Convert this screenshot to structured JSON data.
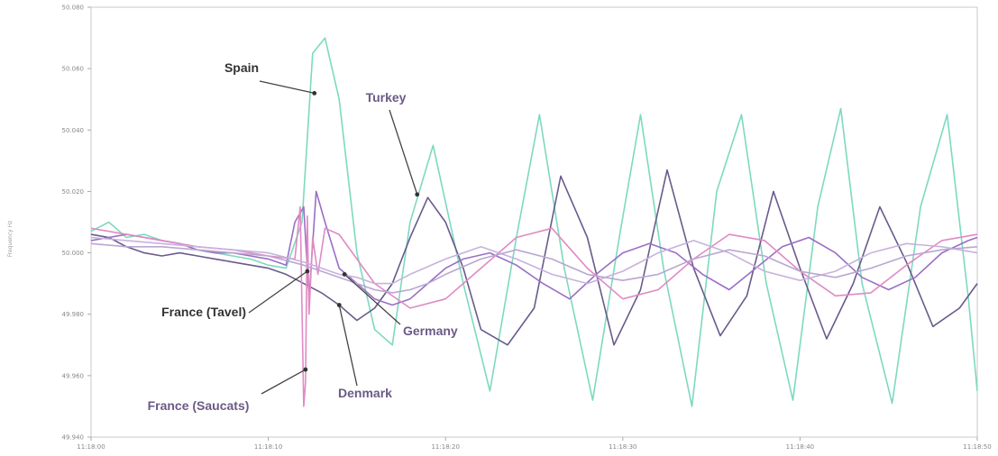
{
  "chart_data": {
    "type": "line",
    "title": "",
    "xlabel": "",
    "ylabel": "Frequency Hz",
    "xlim": [
      0,
      50
    ],
    "ylim": [
      49.94,
      50.08
    ],
    "x_ticks": [
      {
        "value": 0,
        "label": "11:18:00"
      },
      {
        "value": 10,
        "label": "11:18:10"
      },
      {
        "value": 20,
        "label": "11:18:20"
      },
      {
        "value": 30,
        "label": "11:18:30"
      },
      {
        "value": 40,
        "label": "11:18:40"
      },
      {
        "value": 50,
        "label": "11:18:50"
      }
    ],
    "y_ticks": [
      {
        "value": 49.94,
        "label": "49.940"
      },
      {
        "value": 49.96,
        "label": "49.960"
      },
      {
        "value": 49.98,
        "label": "49.980"
      },
      {
        "value": 50.0,
        "label": "50.000"
      },
      {
        "value": 50.02,
        "label": "50.020"
      },
      {
        "value": 50.04,
        "label": "50.040"
      },
      {
        "value": 50.06,
        "label": "50.060"
      },
      {
        "value": 50.08,
        "label": "50.080"
      }
    ],
    "grid": false,
    "legend": "none",
    "series": [
      {
        "name": "Spain",
        "color": "#7dd9c0",
        "x": [
          0,
          1,
          2,
          3,
          4,
          5,
          6,
          7,
          8,
          9,
          10,
          11,
          11.9,
          12.5,
          13.2,
          14,
          15,
          16,
          17,
          18,
          19.3,
          21,
          22.5,
          24,
          25.3,
          26.7,
          28.3,
          29.8,
          31,
          32.3,
          33.9,
          35.3,
          36.7,
          38.1,
          39.6,
          41,
          42.3,
          43.5,
          45.2,
          46.8,
          48.3,
          49.5,
          50
        ],
        "y": [
          50.007,
          50.01,
          50.005,
          50.006,
          50.004,
          50.003,
          50.001,
          50.0,
          49.999,
          49.998,
          49.996,
          49.995,
          50.01,
          50.065,
          50.07,
          50.05,
          50.0,
          49.975,
          49.97,
          50.01,
          50.035,
          49.99,
          49.955,
          50.005,
          50.045,
          49.995,
          49.952,
          50.005,
          50.045,
          49.995,
          49.95,
          50.02,
          50.045,
          49.99,
          49.952,
          50.015,
          50.047,
          49.99,
          49.951,
          50.015,
          50.045,
          49.985,
          49.955
        ]
      },
      {
        "name": "Turkey",
        "color": "#6a5a8c",
        "x": [
          0,
          1,
          2,
          3,
          4,
          5,
          6,
          7,
          8,
          9,
          10,
          11,
          12,
          13,
          14,
          15,
          16,
          17,
          18,
          19,
          20,
          21,
          22,
          23.5,
          25,
          26.5,
          28,
          29.5,
          31,
          32.5,
          34,
          35.5,
          37,
          38.5,
          40,
          41.5,
          43,
          44.5,
          46,
          47.5,
          49,
          50
        ],
        "y": [
          50.006,
          50.005,
          50.002,
          50.0,
          49.999,
          50.0,
          49.999,
          49.998,
          49.997,
          49.996,
          49.995,
          49.993,
          49.99,
          49.987,
          49.983,
          49.978,
          49.982,
          49.99,
          50.005,
          50.018,
          50.01,
          49.995,
          49.975,
          49.97,
          49.982,
          50.025,
          50.005,
          49.97,
          49.988,
          50.027,
          49.995,
          49.973,
          49.986,
          50.02,
          49.995,
          49.972,
          49.99,
          50.015,
          49.997,
          49.976,
          49.982,
          49.99
        ]
      },
      {
        "name": "France (Tavel)",
        "color": "#9a6fc4",
        "x": [
          0,
          1,
          2,
          3,
          4,
          5,
          6,
          7,
          8,
          9,
          10,
          11,
          11.5,
          12,
          12.3,
          12.7,
          13.2,
          14,
          15,
          16,
          17,
          18,
          19,
          20,
          21,
          22.5,
          24,
          25.5,
          27,
          28.5,
          30,
          31.5,
          33,
          34.5,
          36,
          37.5,
          39,
          40.5,
          42,
          43.5,
          45,
          46.5,
          48,
          49.5,
          50
        ],
        "y": [
          50.004,
          50.005,
          50.006,
          50.005,
          50.004,
          50.003,
          50.001,
          50.0,
          50.0,
          49.999,
          49.998,
          49.996,
          50.01,
          50.015,
          49.985,
          50.02,
          50.01,
          49.995,
          49.99,
          49.985,
          49.983,
          49.985,
          49.99,
          49.995,
          49.998,
          50.0,
          49.996,
          49.99,
          49.985,
          49.993,
          50.0,
          50.003,
          50.0,
          49.993,
          49.988,
          49.995,
          50.002,
          50.005,
          50.0,
          49.992,
          49.988,
          49.992,
          50.0,
          50.004,
          50.005
        ]
      },
      {
        "name": "France (Saucats)",
        "color": "#e08ac4",
        "x": [
          0,
          2,
          4,
          6,
          8,
          10,
          11.5,
          11.8,
          12.0,
          12.1,
          12.2,
          12.3,
          12.5,
          12.8,
          13.2,
          14,
          16,
          18,
          20,
          22,
          24,
          26,
          28,
          30,
          32,
          34,
          36,
          38,
          40,
          42,
          44,
          46,
          48,
          50
        ],
        "y": [
          50.008,
          50.006,
          50.004,
          50.002,
          50.001,
          49.999,
          49.998,
          50.015,
          49.95,
          49.958,
          50.012,
          49.98,
          50.005,
          49.993,
          50.008,
          50.006,
          49.99,
          49.982,
          49.985,
          49.995,
          50.005,
          50.008,
          49.995,
          49.985,
          49.988,
          49.998,
          50.006,
          50.004,
          49.994,
          49.986,
          49.987,
          49.996,
          50.004,
          50.006
        ]
      },
      {
        "name": "Germany",
        "color": "#c7b2dd",
        "x": [
          0,
          2,
          4,
          6,
          8,
          10,
          12,
          13,
          14,
          15,
          16,
          17,
          18,
          20,
          22,
          24,
          26,
          28,
          30,
          32,
          34,
          36,
          38,
          40,
          42,
          44,
          46,
          48,
          50
        ],
        "y": [
          50.005,
          50.004,
          50.003,
          50.002,
          50.001,
          50.0,
          49.997,
          49.995,
          49.993,
          49.992,
          49.99,
          49.99,
          49.993,
          49.998,
          50.002,
          49.998,
          49.993,
          49.99,
          49.994,
          50.0,
          50.004,
          50.0,
          49.994,
          49.991,
          49.994,
          50.0,
          50.003,
          50.002,
          50.0
        ]
      },
      {
        "name": "Denmark",
        "color": "#b9a7d2",
        "x": [
          0,
          2,
          4,
          6,
          8,
          10,
          12,
          13,
          14,
          15,
          16,
          17,
          18,
          19,
          20,
          22,
          24,
          26,
          28,
          30,
          32,
          34,
          36,
          38,
          40,
          42,
          44,
          46,
          48,
          50
        ],
        "y": [
          50.003,
          50.002,
          50.002,
          50.001,
          50.0,
          49.999,
          49.996,
          49.994,
          49.992,
          49.99,
          49.988,
          49.987,
          49.988,
          49.99,
          49.993,
          49.998,
          50.001,
          49.998,
          49.993,
          49.991,
          49.993,
          49.998,
          50.001,
          49.999,
          49.994,
          49.992,
          49.995,
          49.999,
          50.001,
          50.002
        ]
      }
    ],
    "annotations": [
      {
        "text": "Spain",
        "series": "Spain",
        "x": 12.6,
        "y": 50.052
      },
      {
        "text": "Turkey",
        "series": "Turkey",
        "x": 18.4,
        "y": 50.019
      },
      {
        "text": "France (Tavel)",
        "series": "France (Tavel)",
        "x": 12.2,
        "y": 49.994
      },
      {
        "text": "Germany",
        "series": "Germany",
        "x": 14.3,
        "y": 49.993
      },
      {
        "text": "Denmark",
        "series": "Denmark",
        "x": 14.0,
        "y": 49.983
      },
      {
        "text": "France (Saucats)",
        "series": "France (Saucats)",
        "x": 12.1,
        "y": 49.962
      }
    ]
  }
}
